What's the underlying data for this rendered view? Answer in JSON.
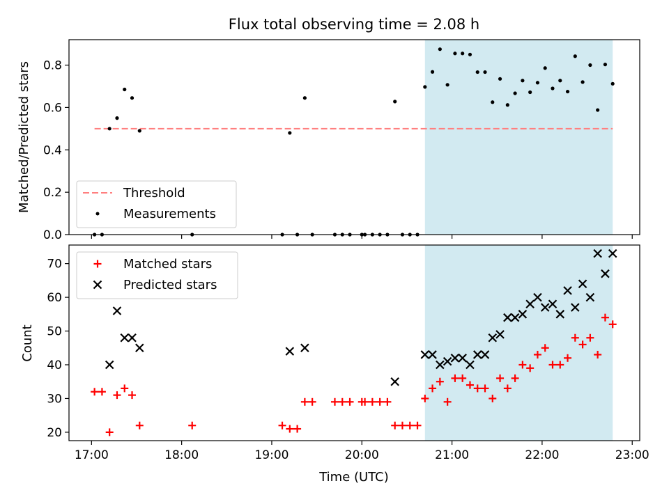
{
  "chart_data": [
    {
      "type": "scatter",
      "title": "Flux total observing time = 2.08 h",
      "ylabel": "Matched/Predicted stars",
      "xlabel": "",
      "xlim": [
        "16:45",
        "23:05"
      ],
      "ylim": [
        0,
        0.92
      ],
      "yticks": [
        0,
        0.2,
        0.4,
        0.6,
        0.8
      ],
      "ytick_labels": [
        "0.0",
        "0.2",
        "0.4",
        "0.6",
        "0.8"
      ],
      "xticks": [
        "17:00",
        "18:00",
        "19:00",
        "20:00",
        "21:00",
        "22:00",
        "23:00"
      ],
      "show_xtick_labels": false,
      "shaded_span": [
        "20:42",
        "22:47"
      ],
      "threshold": {
        "name": "Threshold",
        "value": 0.5,
        "x_range": [
          "17:02",
          "22:47"
        ],
        "color": "#ff7f7f",
        "style": "dashed"
      },
      "legend": {
        "placement": "lower-left",
        "entries": [
          "Threshold",
          "Measurements"
        ]
      },
      "series": [
        {
          "name": "Measurements",
          "color": "#000000",
          "marker": "dot",
          "points": [
            [
              "17:02",
              0.0
            ],
            [
              "17:07",
              0.0
            ],
            [
              "17:12",
              0.5
            ],
            [
              "17:17",
              0.55
            ],
            [
              "17:22",
              0.685
            ],
            [
              "17:27",
              0.645
            ],
            [
              "17:32",
              0.49
            ],
            [
              "18:07",
              0.0
            ],
            [
              "19:07",
              0.0
            ],
            [
              "19:12",
              0.48
            ],
            [
              "19:17",
              0.0
            ],
            [
              "19:22",
              0.645
            ],
            [
              "19:27",
              0.0
            ],
            [
              "19:42",
              0.0
            ],
            [
              "19:47",
              0.0
            ],
            [
              "19:52",
              0.0
            ],
            [
              "20:00",
              0.0
            ],
            [
              "20:02",
              0.0
            ],
            [
              "20:07",
              0.0
            ],
            [
              "20:12",
              0.0
            ],
            [
              "20:17",
              0.0
            ],
            [
              "20:22",
              0.628
            ],
            [
              "20:27",
              0.0
            ],
            [
              "20:32",
              0.0
            ],
            [
              "20:37",
              0.0
            ],
            [
              "20:42",
              0.697
            ],
            [
              "20:47",
              0.768
            ],
            [
              "20:52",
              0.875
            ],
            [
              "20:57",
              0.707
            ],
            [
              "21:02",
              0.855
            ],
            [
              "21:07",
              0.855
            ],
            [
              "21:12",
              0.85
            ],
            [
              "21:17",
              0.767
            ],
            [
              "21:22",
              0.767
            ],
            [
              "21:27",
              0.625
            ],
            [
              "21:32",
              0.735
            ],
            [
              "21:37",
              0.612
            ],
            [
              "21:42",
              0.667
            ],
            [
              "21:47",
              0.727
            ],
            [
              "21:52",
              0.672
            ],
            [
              "21:57",
              0.717
            ],
            [
              "22:02",
              0.786
            ],
            [
              "22:07",
              0.69
            ],
            [
              "22:12",
              0.727
            ],
            [
              "22:17",
              0.675
            ],
            [
              "22:22",
              0.842
            ],
            [
              "22:27",
              0.72
            ],
            [
              "22:32",
              0.8
            ],
            [
              "22:37",
              0.588
            ],
            [
              "22:42",
              0.803
            ],
            [
              "22:47",
              0.712
            ]
          ]
        }
      ]
    },
    {
      "type": "scatter",
      "title": "",
      "ylabel": "Count",
      "xlabel": "Time (UTC)",
      "xlim": [
        "16:45",
        "23:05"
      ],
      "ylim": [
        17.5,
        75.5
      ],
      "yticks": [
        20,
        30,
        40,
        50,
        60,
        70
      ],
      "ytick_labels": [
        "20",
        "30",
        "40",
        "50",
        "60",
        "70"
      ],
      "xticks": [
        "17:00",
        "18:00",
        "19:00",
        "20:00",
        "21:00",
        "22:00",
        "23:00"
      ],
      "xtick_labels": [
        "17:00",
        "18:00",
        "19:00",
        "20:00",
        "21:00",
        "22:00",
        "23:00"
      ],
      "shaded_span": [
        "20:42",
        "22:47"
      ],
      "legend": {
        "placement": "upper-left",
        "entries": [
          "Matched stars",
          "Predicted stars"
        ]
      },
      "series": [
        {
          "name": "Matched stars",
          "color": "#ff0000",
          "marker": "plus",
          "points": [
            [
              "17:02",
              32
            ],
            [
              "17:07",
              32
            ],
            [
              "17:12",
              20
            ],
            [
              "17:17",
              31
            ],
            [
              "17:22",
              33
            ],
            [
              "17:27",
              31
            ],
            [
              "17:32",
              22
            ],
            [
              "18:07",
              22
            ],
            [
              "19:07",
              22
            ],
            [
              "19:12",
              21
            ],
            [
              "19:17",
              21
            ],
            [
              "19:22",
              29
            ],
            [
              "19:27",
              29
            ],
            [
              "19:42",
              29
            ],
            [
              "19:47",
              29
            ],
            [
              "19:52",
              29
            ],
            [
              "20:00",
              29
            ],
            [
              "20:02",
              29
            ],
            [
              "20:07",
              29
            ],
            [
              "20:12",
              29
            ],
            [
              "20:17",
              29
            ],
            [
              "20:22",
              22
            ],
            [
              "20:27",
              22
            ],
            [
              "20:32",
              22
            ],
            [
              "20:37",
              22
            ],
            [
              "20:42",
              30
            ],
            [
              "20:47",
              33
            ],
            [
              "20:52",
              35
            ],
            [
              "20:57",
              29
            ],
            [
              "21:02",
              36
            ],
            [
              "21:07",
              36
            ],
            [
              "21:12",
              34
            ],
            [
              "21:17",
              33
            ],
            [
              "21:22",
              33
            ],
            [
              "21:27",
              30
            ],
            [
              "21:32",
              36
            ],
            [
              "21:37",
              33
            ],
            [
              "21:42",
              36
            ],
            [
              "21:47",
              40
            ],
            [
              "21:52",
              39
            ],
            [
              "21:57",
              43
            ],
            [
              "22:02",
              45
            ],
            [
              "22:07",
              40
            ],
            [
              "22:12",
              40
            ],
            [
              "22:17",
              42
            ],
            [
              "22:22",
              48
            ],
            [
              "22:27",
              46
            ],
            [
              "22:32",
              48
            ],
            [
              "22:37",
              43
            ],
            [
              "22:42",
              54
            ],
            [
              "22:47",
              52
            ]
          ]
        },
        {
          "name": "Predicted stars",
          "color": "#000000",
          "marker": "x",
          "points": [
            [
              "17:12",
              40
            ],
            [
              "17:17",
              56
            ],
            [
              "17:22",
              48
            ],
            [
              "17:27",
              48
            ],
            [
              "17:32",
              45
            ],
            [
              "19:12",
              44
            ],
            [
              "19:22",
              45
            ],
            [
              "20:22",
              35
            ],
            [
              "20:42",
              43
            ],
            [
              "20:47",
              43
            ],
            [
              "20:52",
              40
            ],
            [
              "20:57",
              41
            ],
            [
              "21:02",
              42
            ],
            [
              "21:07",
              42
            ],
            [
              "21:12",
              40
            ],
            [
              "21:17",
              43
            ],
            [
              "21:22",
              43
            ],
            [
              "21:27",
              48
            ],
            [
              "21:32",
              49
            ],
            [
              "21:37",
              54
            ],
            [
              "21:42",
              54
            ],
            [
              "21:47",
              55
            ],
            [
              "21:52",
              58
            ],
            [
              "21:57",
              60
            ],
            [
              "22:02",
              57
            ],
            [
              "22:07",
              58
            ],
            [
              "22:12",
              55
            ],
            [
              "22:17",
              62
            ],
            [
              "22:22",
              57
            ],
            [
              "22:27",
              64
            ],
            [
              "22:32",
              60
            ],
            [
              "22:37",
              73
            ],
            [
              "22:42",
              67
            ],
            [
              "22:47",
              73
            ]
          ]
        }
      ]
    }
  ],
  "colors": {
    "shade": "#add8e6"
  }
}
